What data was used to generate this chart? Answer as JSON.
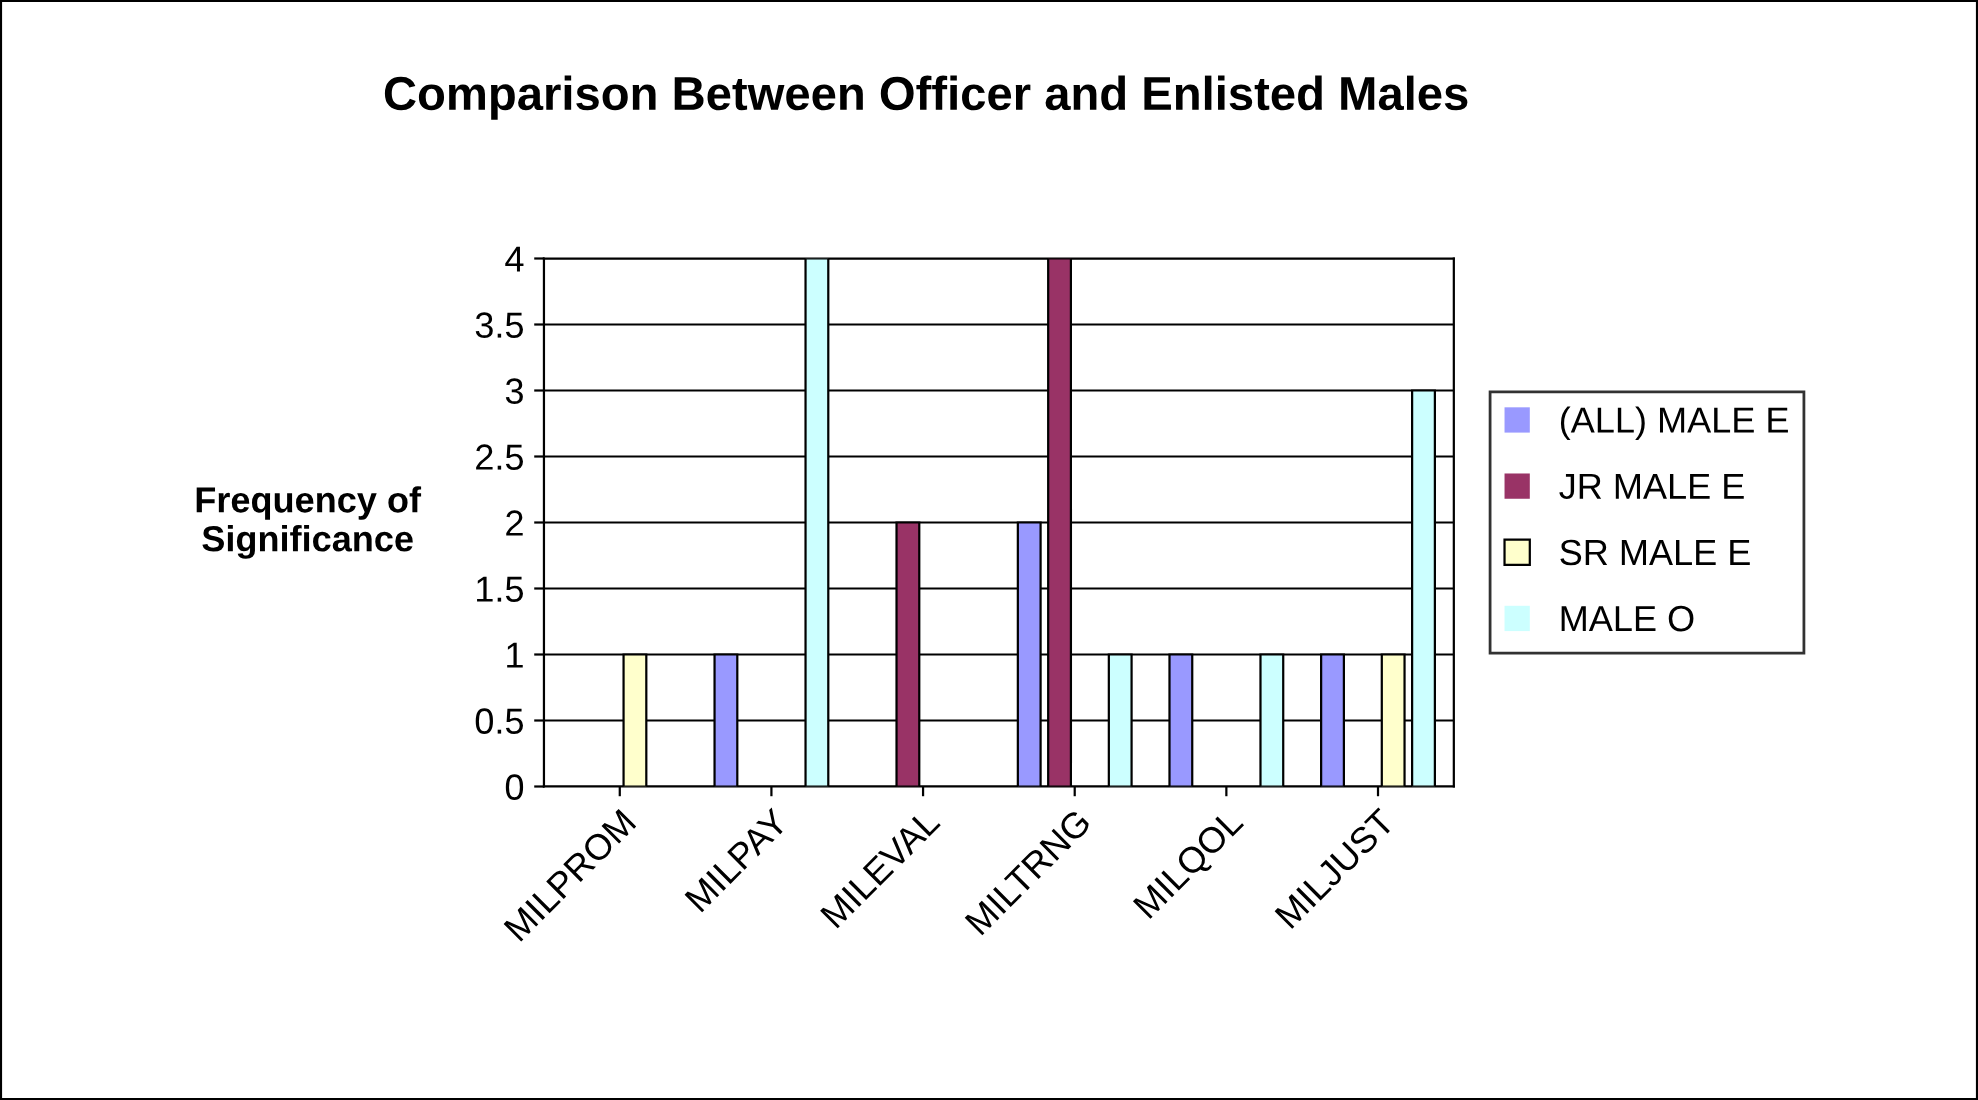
{
  "chart_data": {
    "type": "bar",
    "title": "Comparison Between Officer and Enlisted Males",
    "ylabel": "Frequency of\nSignificance",
    "categories": [
      "MILPROM",
      "MILPAY",
      "MILEVAL",
      "MILTRNG",
      "MILQOL",
      "MILJUST"
    ],
    "series": [
      {
        "name": "(ALL) MALE E",
        "color": "#9999ff",
        "values": [
          0,
          1,
          0,
          2,
          1,
          1
        ]
      },
      {
        "name": "JR MALE E",
        "color": "#993366",
        "values": [
          0,
          0,
          2,
          4,
          0,
          0
        ]
      },
      {
        "name": "SR MALE E",
        "color": "#ffffcc",
        "values": [
          1,
          0,
          0,
          0,
          0,
          1
        ]
      },
      {
        "name": "MALE O",
        "color": "#ccffff",
        "values": [
          0,
          4,
          0,
          1,
          1,
          3
        ]
      }
    ],
    "ylim": [
      0,
      4
    ],
    "yticks": [
      0,
      0.5,
      1,
      1.5,
      2,
      2.5,
      3,
      3.5,
      4
    ],
    "grid": "y",
    "legend": "right"
  }
}
